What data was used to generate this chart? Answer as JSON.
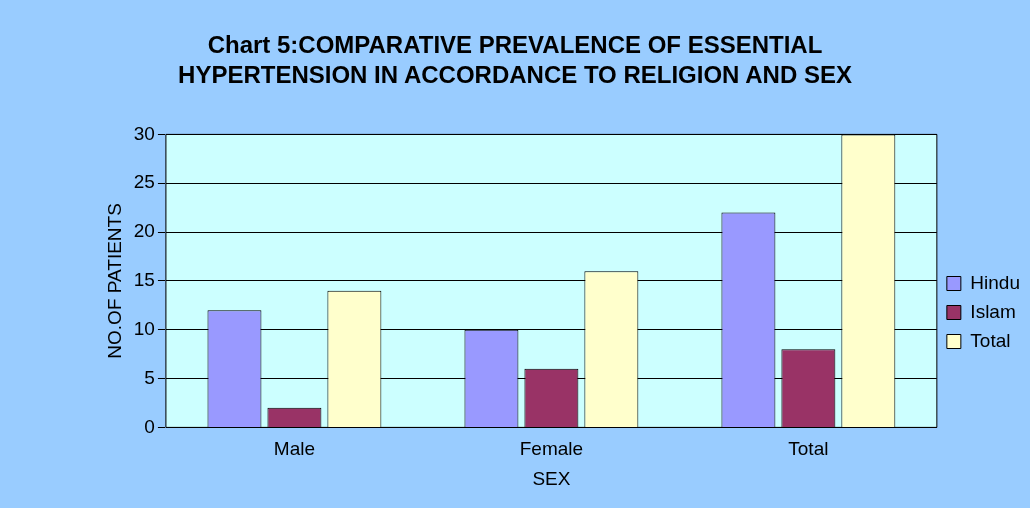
{
  "chart_data": {
    "type": "bar",
    "title": "Chart 5:COMPARATIVE PREVALENCE OF ESSENTIAL HYPERTENSION IN ACCORDANCE TO RELIGION AND SEX",
    "xlabel": "SEX",
    "ylabel": "NO.OF PATIENTS",
    "categories": [
      "Male",
      "Female",
      "Total"
    ],
    "series": [
      {
        "name": "Hindu",
        "color": "#9999ff",
        "values": [
          12,
          10,
          22
        ]
      },
      {
        "name": "Islam",
        "color": "#993366",
        "values": [
          2,
          6,
          8
        ]
      },
      {
        "name": "Total",
        "color": "#ffffcc",
        "values": [
          14,
          16,
          30
        ]
      }
    ],
    "ylim": [
      0,
      30
    ],
    "yticks": [
      0,
      5,
      10,
      15,
      20,
      25,
      30
    ],
    "grid": "y",
    "legend": "right"
  }
}
